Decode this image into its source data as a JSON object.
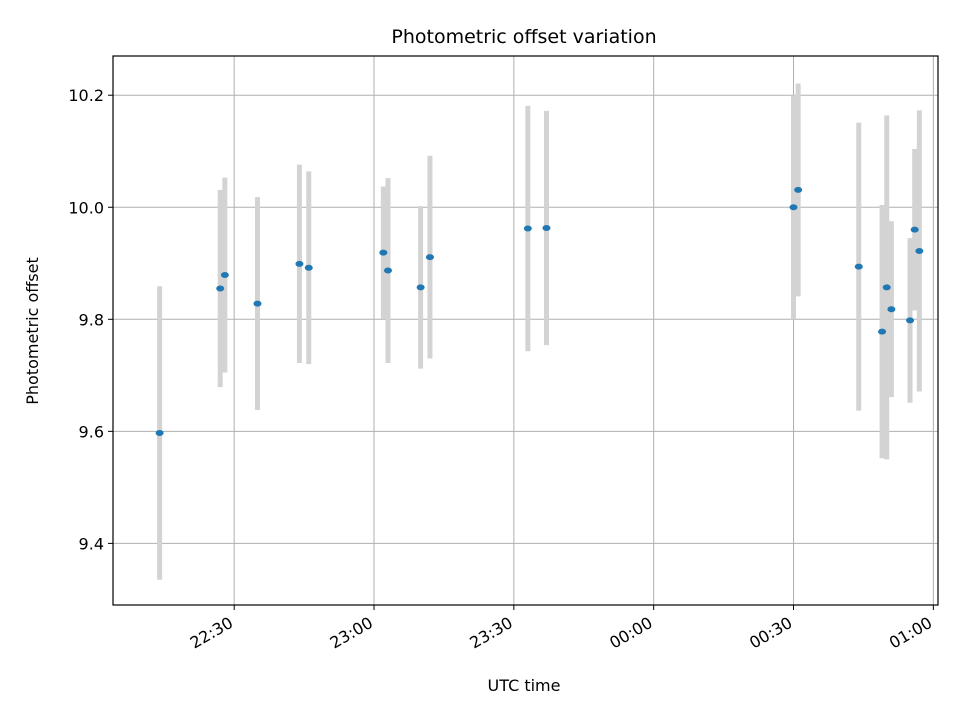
{
  "chart_data": {
    "type": "scatter",
    "title": "Photometric offset variation",
    "xlabel": "UTC time",
    "ylabel": "Photometric offset",
    "x_ticks": [
      "22:30",
      "23:00",
      "23:30",
      "00:00",
      "00:30",
      "01:00"
    ],
    "y_ticks": [
      "9.4",
      "9.6",
      "9.8",
      "10.0",
      "10.2"
    ],
    "xlim": [
      "22:04",
      "01:01"
    ],
    "ylim": [
      9.29,
      10.27
    ],
    "grid": true,
    "marker_color": "#1f77b4",
    "errorbar_color": "#d3d3d3",
    "points": [
      {
        "t": "22:14",
        "y": 9.597,
        "err": 0.262
      },
      {
        "t": "22:27",
        "y": 9.855,
        "err": 0.176
      },
      {
        "t": "22:28",
        "y": 9.879,
        "err": 0.174
      },
      {
        "t": "22:35",
        "y": 9.828,
        "err": 0.19
      },
      {
        "t": "22:44",
        "y": 9.899,
        "err": 0.177
      },
      {
        "t": "22:46",
        "y": 9.892,
        "err": 0.172
      },
      {
        "t": "23:02",
        "y": 9.919,
        "err": 0.118
      },
      {
        "t": "23:03",
        "y": 9.887,
        "err": 0.165
      },
      {
        "t": "23:10",
        "y": 9.857,
        "err": 0.145
      },
      {
        "t": "23:12",
        "y": 9.911,
        "err": 0.181
      },
      {
        "t": "23:33",
        "y": 9.962,
        "err": 0.219
      },
      {
        "t": "23:37",
        "y": 9.963,
        "err": 0.209
      },
      {
        "t": "00:30",
        "y": 10.0,
        "err": 0.2
      },
      {
        "t": "00:31",
        "y": 10.031,
        "err": 0.19
      },
      {
        "t": "00:44",
        "y": 9.894,
        "err": 0.257
      },
      {
        "t": "00:49",
        "y": 9.778,
        "err": 0.226
      },
      {
        "t": "00:50",
        "y": 9.857,
        "err": 0.307
      },
      {
        "t": "00:51",
        "y": 9.818,
        "err": 0.157
      },
      {
        "t": "00:55",
        "y": 9.798,
        "err": 0.147
      },
      {
        "t": "00:56",
        "y": 9.96,
        "err": 0.144
      },
      {
        "t": "00:57",
        "y": 9.922,
        "err": 0.251
      }
    ]
  }
}
